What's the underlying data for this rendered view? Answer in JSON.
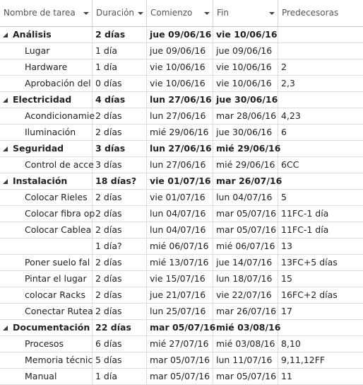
{
  "columns": [
    {
      "label": "Nombre de tarea"
    },
    {
      "label": "Duración"
    },
    {
      "label": "Comienzo"
    },
    {
      "label": "Fin"
    },
    {
      "label": "Predecesoras"
    }
  ],
  "rows": [
    {
      "summary": true,
      "name": "Análisis",
      "dur": "2 días",
      "start": "jue 09/06/16",
      "end": "vie 10/06/16",
      "pred": ""
    },
    {
      "summary": false,
      "name": "Lugar",
      "dur": "1 día",
      "start": "jue 09/06/16",
      "end": "jue 09/06/16",
      "pred": ""
    },
    {
      "summary": false,
      "name": "Hardware",
      "dur": "1 día",
      "start": "vie 10/06/16",
      "end": "vie 10/06/16",
      "pred": "2"
    },
    {
      "summary": false,
      "name": "Aprobación del",
      "dur": "0 días",
      "start": "vie 10/06/16",
      "end": "vie 10/06/16",
      "pred": "2,3"
    },
    {
      "summary": true,
      "name": "Electricidad",
      "dur": "4 días",
      "start": "lun 27/06/16",
      "end": "jue 30/06/16",
      "pred": ""
    },
    {
      "summary": false,
      "name": "Acondicionamie",
      "dur": "2 días",
      "start": "lun 27/06/16",
      "end": "mar 28/06/16",
      "pred": "4,23"
    },
    {
      "summary": false,
      "name": "Iluminación",
      "dur": "2 días",
      "start": "mié 29/06/16",
      "end": "jue 30/06/16",
      "pred": "6"
    },
    {
      "summary": true,
      "name": "Seguridad",
      "dur": "3 días",
      "start": "lun 27/06/16",
      "end": "mié 29/06/16",
      "pred": ""
    },
    {
      "summary": false,
      "name": "Control de acce",
      "dur": "3 días",
      "start": "lun 27/06/16",
      "end": "mié 29/06/16",
      "pred": "6CC"
    },
    {
      "summary": true,
      "name": "Instalación",
      "dur": "18 días?",
      "start": "vie 01/07/16",
      "end": "mar 26/07/16",
      "pred": ""
    },
    {
      "summary": false,
      "name": "Colocar Rieles",
      "dur": "2 días",
      "start": "vie 01/07/16",
      "end": "lun 04/07/16",
      "pred": "5"
    },
    {
      "summary": false,
      "name": "Colocar fibra op",
      "dur": "2 días",
      "start": "lun 04/07/16",
      "end": "mar 05/07/16",
      "pred": "11FC-1 día"
    },
    {
      "summary": false,
      "name": "Colocar Cablea",
      "dur": "2 días",
      "start": "lun 04/07/16",
      "end": "mar 05/07/16",
      "pred": "11FC-1 día"
    },
    {
      "summary": false,
      "name": "",
      "dur": "1 día?",
      "start": "mié 06/07/16",
      "end": "mié 06/07/16",
      "pred": "13"
    },
    {
      "summary": false,
      "name": "Poner suelo fal",
      "dur": "2 días",
      "start": "mié 13/07/16",
      "end": "jue 14/07/16",
      "pred": "13FC+5 días"
    },
    {
      "summary": false,
      "name": "Pintar el lugar",
      "dur": "2 días",
      "start": "vie 15/07/16",
      "end": "lun 18/07/16",
      "pred": "15"
    },
    {
      "summary": false,
      "name": "colocar Racks",
      "dur": "2 días",
      "start": "jue 21/07/16",
      "end": "vie 22/07/16",
      "pred": "16FC+2 días"
    },
    {
      "summary": false,
      "name": "Conectar Rutea",
      "dur": "2 días",
      "start": "lun 25/07/16",
      "end": "mar 26/07/16",
      "pred": "17"
    },
    {
      "summary": true,
      "name": "Documentación",
      "dur": "22 días",
      "start": "mar 05/07/16",
      "end": "mié 03/08/16",
      "pred": ""
    },
    {
      "summary": false,
      "name": "Procesos",
      "dur": "6 días",
      "start": "mié 27/07/16",
      "end": "mié 03/08/16",
      "pred": "8,10"
    },
    {
      "summary": false,
      "name": "Memoria técnic",
      "dur": "5 días",
      "start": "mar 05/07/16",
      "end": "lun 11/07/16",
      "pred": "9,11,12FF"
    },
    {
      "summary": false,
      "name": "Manual",
      "dur": "1 día",
      "start": "mar 05/07/16",
      "end": "mar 05/07/16",
      "pred": "11"
    }
  ]
}
